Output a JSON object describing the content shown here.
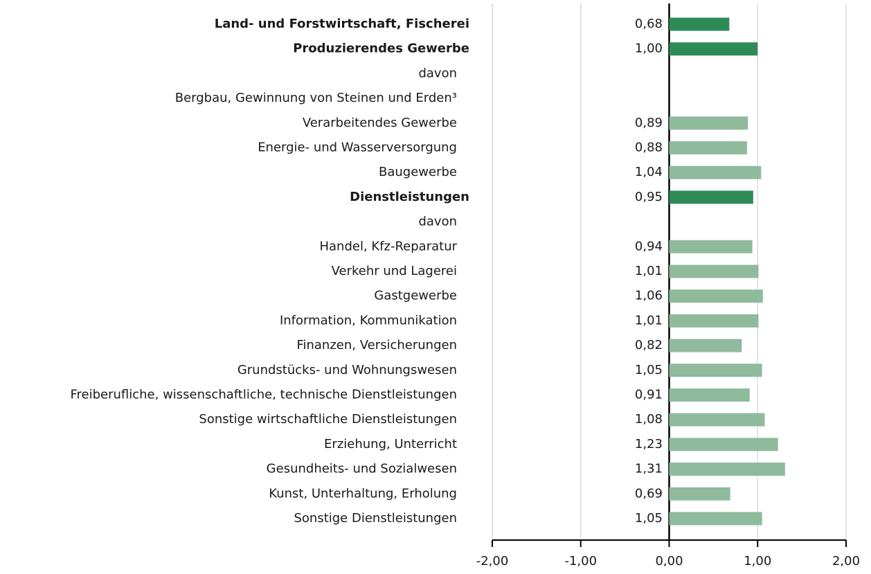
{
  "chart_data": {
    "type": "bar",
    "orientation": "horizontal",
    "categories": [
      "Land- und Forstwirtschaft, Fischerei",
      "Produzierendes Gewerbe",
      "davon",
      "Bergbau, Gewinnung von Steinen und Erden³",
      "Verarbeitendes Gewerbe",
      "Energie- und Wasserversorgung",
      "Baugewerbe",
      "Dienstleistungen",
      "davon",
      "Handel, Kfz-Reparatur",
      "Verkehr und Lagerei",
      "Gastgewerbe",
      "Information, Kommunikation",
      "Finanzen, Versicherungen",
      "Grundstücks- und Wohnungswesen",
      "Freiberufliche, wissenschaftliche, technische Dienstleistungen",
      "Sonstige wirtschaftliche Dienstleistungen",
      "Erziehung, Unterricht",
      "Gesundheits- und Sozialwesen",
      "Kunst, Unterhaltung, Erholung",
      "Sonstige Dienstleistungen"
    ],
    "values": [
      0.68,
      1.0,
      null,
      null,
      0.89,
      0.88,
      1.04,
      0.95,
      null,
      0.94,
      1.01,
      1.06,
      1.01,
      0.82,
      1.05,
      0.91,
      1.08,
      1.23,
      1.31,
      0.69,
      1.05
    ],
    "value_labels": [
      "0,68",
      "1,00",
      null,
      null,
      "0,89",
      "0,88",
      "1,04",
      "0,95",
      null,
      "0,94",
      "1,01",
      "1,06",
      "1,01",
      "0,82",
      "1,05",
      "0,91",
      "1,08",
      "1,23",
      "1,31",
      "0,69",
      "1,05"
    ],
    "colors": [
      "#2e8b57",
      "#2e8b57",
      null,
      null,
      "#8fba9c",
      "#8fba9c",
      "#8fba9c",
      "#2e8b57",
      null,
      "#8fba9c",
      "#8fba9c",
      "#8fba9c",
      "#8fba9c",
      "#8fba9c",
      "#8fba9c",
      "#8fba9c",
      "#8fba9c",
      "#8fba9c",
      "#8fba9c",
      "#8fba9c",
      "#8fba9c"
    ],
    "bold": [
      true,
      true,
      false,
      false,
      false,
      false,
      false,
      true,
      false,
      false,
      false,
      false,
      false,
      false,
      false,
      false,
      false,
      false,
      false,
      false,
      false
    ],
    "xlim": [
      -2,
      2
    ],
    "xticks": [
      {
        "value": -2,
        "label": "-2,00"
      },
      {
        "value": -1,
        "label": "-1,00"
      },
      {
        "value": 0,
        "label": "0,00"
      },
      {
        "value": 1,
        "label": "1,00"
      },
      {
        "value": 2,
        "label": "2,00"
      }
    ],
    "grid": true
  }
}
